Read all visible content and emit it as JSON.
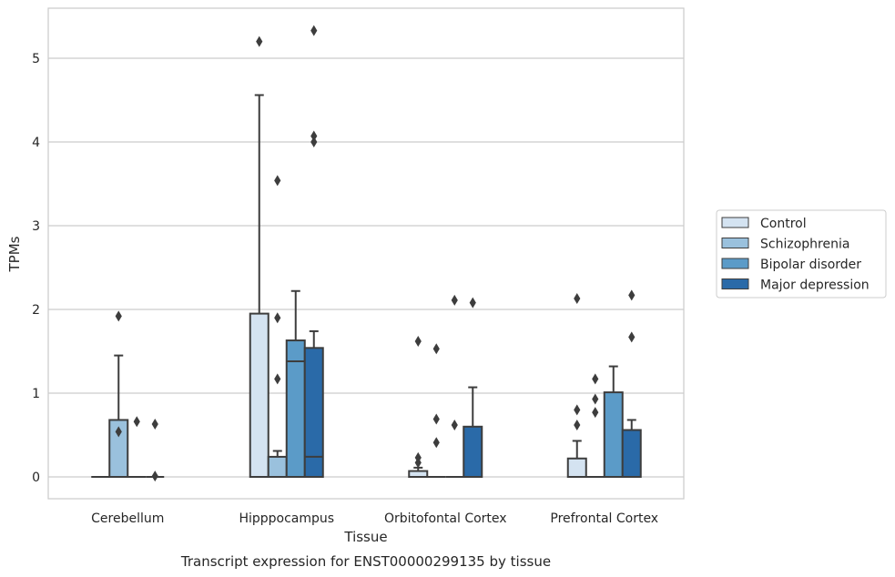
{
  "chart_data": {
    "type": "boxplot",
    "caption": "Transcript expression for ENST00000299135 by tissue",
    "xlabel": "Tissue",
    "ylabel": "TPMs",
    "ylim": [
      -0.25,
      5.6
    ],
    "yticks": [
      0,
      1,
      2,
      3,
      4,
      5
    ],
    "grid": true,
    "legend_position": "right",
    "categories": [
      "Cerebellum",
      "Hipppocampus",
      "Orbitofontal Cortex",
      "Prefrontal Cortex"
    ],
    "series": [
      {
        "name": "Control",
        "color": "#d4e3f1",
        "boxes": [
          {
            "q1": 0,
            "median": 0,
            "q3": 0,
            "whisker_low": 0,
            "whisker_high": 0,
            "outliers": []
          },
          {
            "q1": 0,
            "median": 0,
            "q3": 1.95,
            "whisker_low": 0,
            "whisker_high": 4.56,
            "outliers": [
              5.2
            ]
          },
          {
            "q1": 0,
            "median": 0,
            "q3": 0.07,
            "whisker_low": 0,
            "whisker_high": 0.11,
            "outliers": [
              0.17,
              0.23,
              1.62
            ]
          },
          {
            "q1": 0,
            "median": 0,
            "q3": 0.22,
            "whisker_low": 0,
            "whisker_high": 0.43,
            "outliers": [
              0.62,
              0.8,
              2.13
            ]
          }
        ]
      },
      {
        "name": "Schizophrenia",
        "color": "#9ac1dd",
        "boxes": [
          {
            "q1": 0,
            "median": 0,
            "q3": 0.68,
            "whisker_low": 0,
            "whisker_high": 1.45,
            "outliers": [
              0.54,
              1.92
            ]
          },
          {
            "q1": 0,
            "median": 0,
            "q3": 0.24,
            "whisker_low": 0,
            "whisker_high": 0.31,
            "outliers": [
              1.17,
              1.9,
              3.54
            ]
          },
          {
            "q1": 0,
            "median": 0,
            "q3": 0,
            "whisker_low": 0,
            "whisker_high": 0,
            "outliers": [
              0.41,
              0.69,
              1.53
            ]
          },
          {
            "q1": 0,
            "median": 0,
            "q3": 0,
            "whisker_low": 0,
            "whisker_high": 0,
            "outliers": [
              0.77,
              0.93,
              1.17
            ]
          }
        ]
      },
      {
        "name": "Bipolar disorder",
        "color": "#5b9bc8",
        "boxes": [
          {
            "q1": 0,
            "median": 0,
            "q3": 0,
            "whisker_low": 0,
            "whisker_high": 0,
            "outliers": [
              0.66
            ]
          },
          {
            "q1": 0,
            "median": 1.38,
            "q3": 1.63,
            "whisker_low": 0,
            "whisker_high": 2.22,
            "outliers": []
          },
          {
            "q1": 0,
            "median": 0,
            "q3": 0,
            "whisker_low": 0,
            "whisker_high": 0,
            "outliers": [
              0.62,
              2.11
            ]
          },
          {
            "q1": 0,
            "median": 0,
            "q3": 1.01,
            "whisker_low": 0,
            "whisker_high": 1.32,
            "outliers": []
          }
        ]
      },
      {
        "name": "Major depression",
        "color": "#2a6aa8",
        "boxes": [
          {
            "q1": 0,
            "median": 0,
            "q3": 0,
            "whisker_low": 0,
            "whisker_high": 0,
            "outliers": [
              0.01,
              0.63
            ]
          },
          {
            "q1": 0,
            "median": 0.24,
            "q3": 1.54,
            "whisker_low": 0,
            "whisker_high": 1.74,
            "outliers": [
              4.0,
              4.07,
              5.33
            ]
          },
          {
            "q1": 0,
            "median": 0,
            "q3": 0.6,
            "whisker_low": 0,
            "whisker_high": 1.07,
            "outliers": [
              2.08
            ]
          },
          {
            "q1": 0,
            "median": 0,
            "q3": 0.56,
            "whisker_low": 0,
            "whisker_high": 0.68,
            "outliers": [
              1.67,
              2.17
            ]
          }
        ]
      }
    ]
  }
}
